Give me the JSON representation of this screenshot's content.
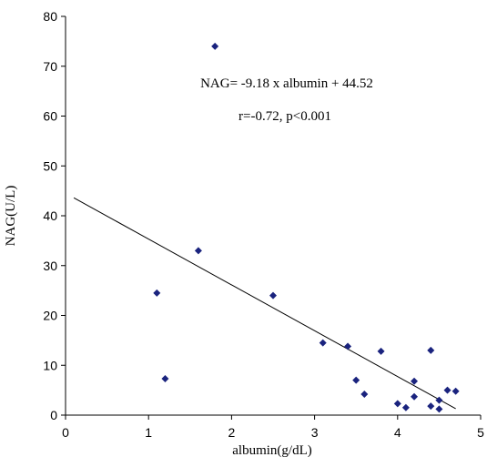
{
  "chart_data": {
    "type": "scatter",
    "title": "",
    "xlabel": "albumin(g/dL)",
    "ylabel": "NAG(U/L)",
    "xlim": [
      0,
      5
    ],
    "ylim": [
      0,
      80
    ],
    "xticks": [
      0,
      1,
      2,
      3,
      4,
      5
    ],
    "yticks": [
      0,
      10,
      20,
      30,
      40,
      50,
      60,
      70,
      80
    ],
    "grid": false,
    "legend": "none",
    "marker_color": "#1a237e",
    "line_color": "#000000",
    "points": [
      {
        "x": 1.8,
        "y": 74
      },
      {
        "x": 1.6,
        "y": 33
      },
      {
        "x": 1.1,
        "y": 24.5
      },
      {
        "x": 1.2,
        "y": 7.3
      },
      {
        "x": 2.5,
        "y": 24
      },
      {
        "x": 3.1,
        "y": 14.5
      },
      {
        "x": 3.4,
        "y": 13.8
      },
      {
        "x": 3.5,
        "y": 7
      },
      {
        "x": 3.6,
        "y": 4.2
      },
      {
        "x": 3.8,
        "y": 12.8
      },
      {
        "x": 4.0,
        "y": 2.3
      },
      {
        "x": 4.1,
        "y": 1.5
      },
      {
        "x": 4.2,
        "y": 6.8
      },
      {
        "x": 4.2,
        "y": 3.7
      },
      {
        "x": 4.4,
        "y": 13
      },
      {
        "x": 4.4,
        "y": 1.8
      },
      {
        "x": 4.5,
        "y": 3
      },
      {
        "x": 4.5,
        "y": 1.2
      },
      {
        "x": 4.6,
        "y": 5
      },
      {
        "x": 4.7,
        "y": 4.8
      }
    ],
    "regression": {
      "x_start": 0.1,
      "y_start": 43.6,
      "x_end": 4.7,
      "y_end": 1.3
    },
    "annotations": {
      "equation": "NAG= -9.18 x albumin + 44.52",
      "stats": "r=-0.72, p<0.001"
    }
  }
}
